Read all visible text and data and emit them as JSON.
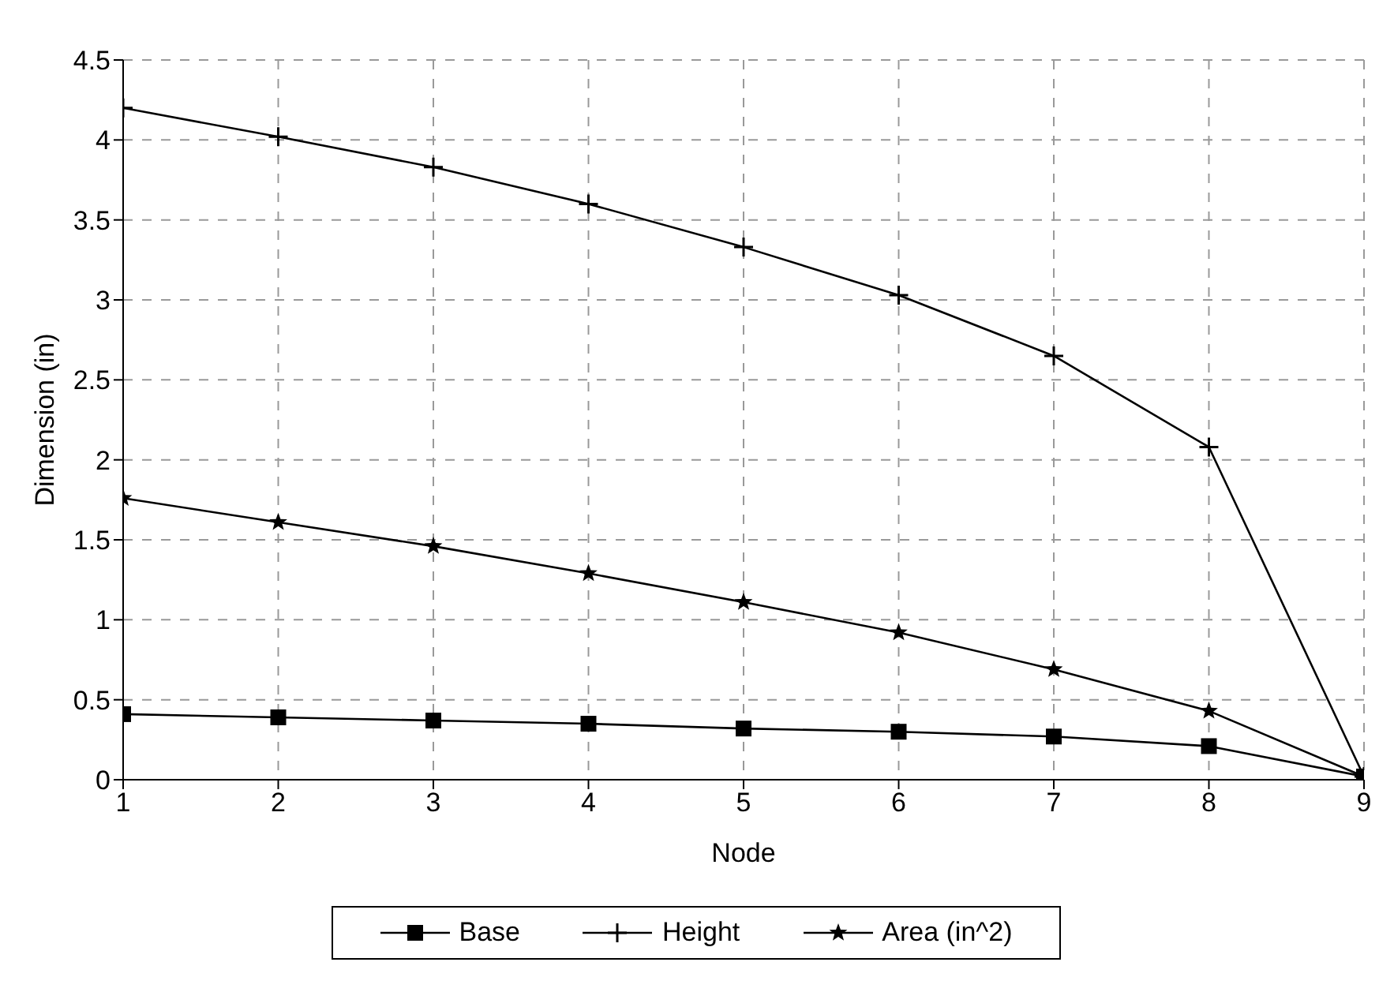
{
  "chart_data": {
    "type": "line",
    "xlabel": "Node",
    "ylabel": "Dimension (in)",
    "x": [
      1,
      2,
      3,
      4,
      5,
      6,
      7,
      8,
      9
    ],
    "series": [
      {
        "name": "Base",
        "color": "#000000",
        "marker": "square",
        "values": [
          0.41,
          0.39,
          0.37,
          0.35,
          0.32,
          0.3,
          0.27,
          0.21,
          0.02
        ]
      },
      {
        "name": "Height",
        "color": "#000000",
        "marker": "cross",
        "values": [
          4.2,
          4.02,
          3.83,
          3.6,
          3.33,
          3.03,
          2.65,
          2.08,
          0.02
        ]
      },
      {
        "name": "Area (in^2)",
        "color": "#000000",
        "marker": "star",
        "values": [
          1.76,
          1.61,
          1.46,
          1.29,
          1.11,
          0.92,
          0.69,
          0.43,
          0.02
        ]
      }
    ],
    "xlim": [
      1,
      9
    ],
    "xticks": [
      1,
      2,
      3,
      4,
      5,
      6,
      7,
      8,
      9
    ],
    "ylim": [
      0,
      4.5
    ],
    "yticks": [
      0,
      0.5,
      1,
      1.5,
      2,
      2.5,
      3,
      3.5,
      4,
      4.5
    ],
    "grid": true,
    "legend": "bottom",
    "line_style": "solid"
  }
}
